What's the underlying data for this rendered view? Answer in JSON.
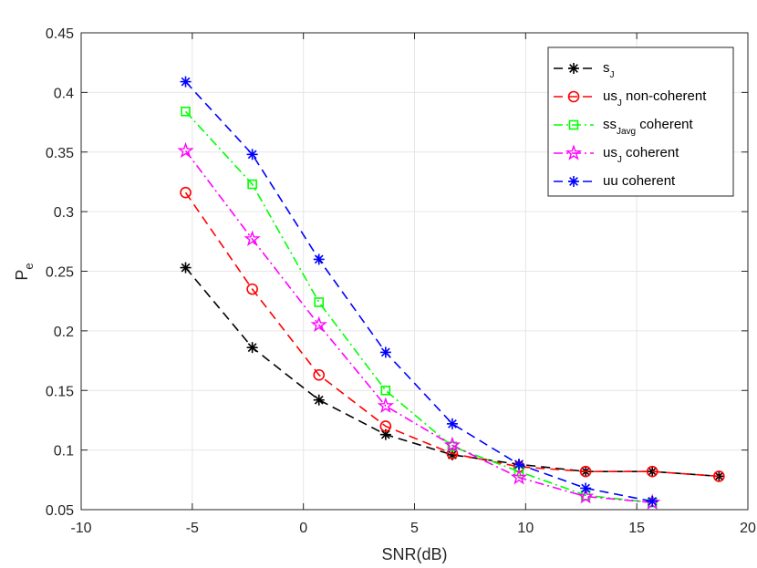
{
  "chart_data": {
    "type": "line",
    "title": "",
    "xlabel": "SNR(dB)",
    "ylabel_main": "P",
    "ylabel_sub": "e",
    "xlim": [
      -10,
      20
    ],
    "ylim": [
      0.05,
      0.45
    ],
    "xticks": [
      -10,
      -5,
      0,
      5,
      10,
      15,
      20
    ],
    "yticks": [
      0.05,
      0.1,
      0.15,
      0.2,
      0.25,
      0.3,
      0.35,
      0.4,
      0.45
    ],
    "xtick_labels": [
      "-10",
      "-5",
      "0",
      "5",
      "10",
      "15",
      "20"
    ],
    "ytick_labels": [
      "0.05",
      "0.1",
      "0.15",
      "0.2",
      "0.25",
      "0.3",
      "0.35",
      "0.4",
      "0.45"
    ],
    "grid": true,
    "legend_position": "top-right",
    "series": [
      {
        "name": "s_J",
        "legend_main": "s",
        "legend_sub": "J",
        "legend_rest": "",
        "color": "#000000",
        "marker": "asterisk",
        "dash": "dashed",
        "x": [
          -5.3,
          -2.3,
          0.7,
          3.7,
          6.7,
          9.7,
          12.7,
          15.7,
          18.7
        ],
        "y": [
          0.253,
          0.186,
          0.142,
          0.113,
          0.096,
          0.088,
          0.082,
          0.082,
          0.078
        ]
      },
      {
        "name": "us_J non-coherent",
        "legend_main": "us",
        "legend_sub": "J",
        "legend_rest": " non-coherent",
        "color": "#ff0000",
        "marker": "circle",
        "dash": "dashed",
        "x": [
          -5.3,
          -2.3,
          0.7,
          3.7,
          6.7,
          9.7,
          12.7,
          15.7,
          18.7
        ],
        "y": [
          0.316,
          0.235,
          0.163,
          0.12,
          0.097,
          0.086,
          0.082,
          0.082,
          0.078
        ]
      },
      {
        "name": "ss_Javg coherent",
        "legend_main": "ss",
        "legend_sub": "Javg",
        "legend_rest": " coherent",
        "color": "#00ff00",
        "marker": "square",
        "dash": "dashdot",
        "x": [
          -5.3,
          -2.3,
          0.7,
          3.7,
          6.7,
          9.7,
          12.7,
          15.7
        ],
        "y": [
          0.384,
          0.323,
          0.224,
          0.15,
          0.103,
          0.082,
          0.062,
          0.056
        ]
      },
      {
        "name": "us_J coherent",
        "legend_main": "us",
        "legend_sub": "J",
        "legend_rest": " coherent",
        "color": "#ff00ff",
        "marker": "star",
        "dash": "dashdot",
        "x": [
          -5.3,
          -2.3,
          0.7,
          3.7,
          6.7,
          9.7,
          12.7,
          15.7
        ],
        "y": [
          0.351,
          0.277,
          0.205,
          0.137,
          0.104,
          0.077,
          0.061,
          0.056
        ]
      },
      {
        "name": "uu coherent",
        "legend_main": "uu",
        "legend_sub": "",
        "legend_rest": " coherent",
        "color": "#0000ff",
        "marker": "asterisk",
        "dash": "dashed",
        "x": [
          -5.3,
          -2.3,
          0.7,
          3.7,
          6.7,
          9.7,
          12.7,
          15.7
        ],
        "y": [
          0.409,
          0.348,
          0.26,
          0.182,
          0.122,
          0.088,
          0.068,
          0.057
        ]
      }
    ]
  }
}
